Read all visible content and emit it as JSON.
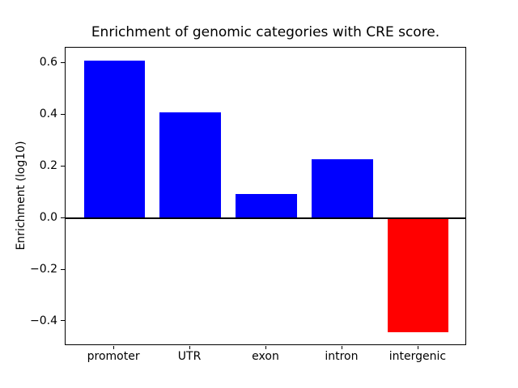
{
  "chart_data": {
    "type": "bar",
    "title": "Enrichment of genomic categories with CRE score.",
    "xlabel": "",
    "ylabel": "Enrichment (log10)",
    "categories": [
      "promoter",
      "UTR",
      "exon",
      "intron",
      "intergenic"
    ],
    "values": [
      0.61,
      0.41,
      0.095,
      0.23,
      -0.44
    ],
    "bar_colors": [
      "#0000ff",
      "#0000ff",
      "#0000ff",
      "#0000ff",
      "#ff0000"
    ],
    "positive_color": "#0000ff",
    "negative_color": "#ff0000",
    "yticks": [
      0.6,
      0.4,
      0.2,
      0.0,
      -0.2,
      -0.4
    ],
    "ytick_labels": [
      "0.6",
      "0.4",
      "0.2",
      "0.0",
      "−0.2",
      "−0.4"
    ],
    "ylim": [
      -0.494,
      0.661
    ],
    "xlim": [
      -0.64,
      4.64
    ],
    "bar_width": 0.8,
    "zero_line": true,
    "grid": false,
    "legend": false,
    "background": "#ffffff",
    "axis_color": "#000000"
  }
}
